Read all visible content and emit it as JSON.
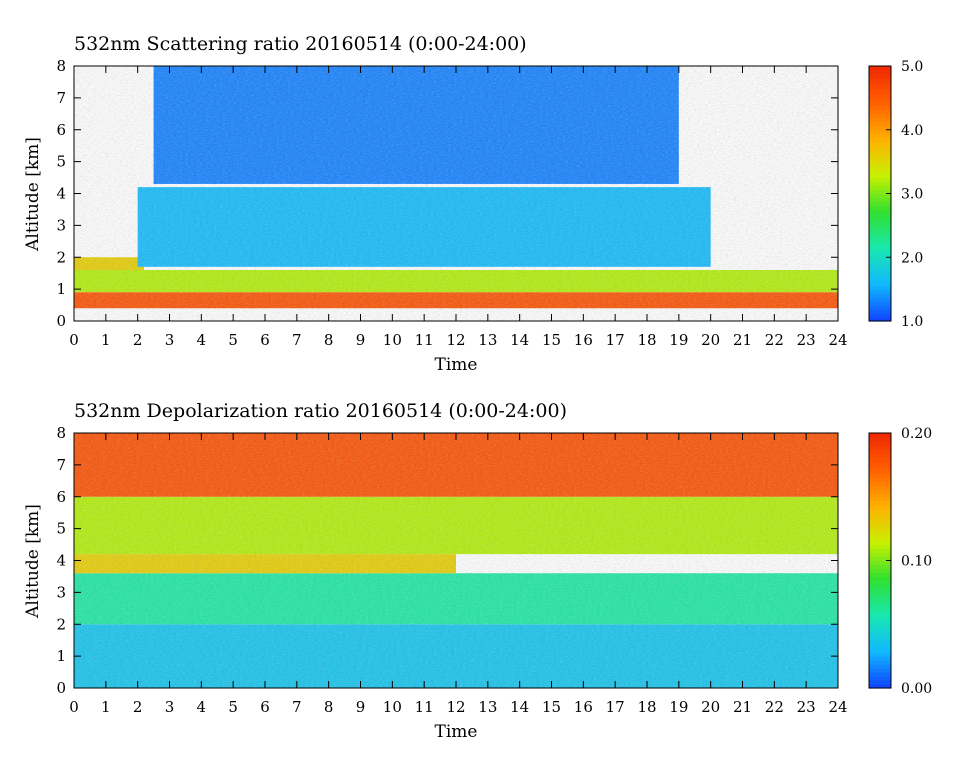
{
  "chart_data": [
    {
      "type": "heatmap",
      "title": "532nm Scattering ratio  20160514 (0:00-24:00)",
      "xlabel": "Time",
      "ylabel": "Altitude [km]",
      "xlim": [
        0,
        24
      ],
      "ylim": [
        0,
        8
      ],
      "x_ticks": [
        "0",
        "1",
        "2",
        "3",
        "4",
        "5",
        "6",
        "7",
        "8",
        "9",
        "10",
        "11",
        "12",
        "13",
        "14",
        "15",
        "16",
        "17",
        "18",
        "19",
        "20",
        "21",
        "22",
        "23",
        "24"
      ],
      "y_ticks": [
        "0",
        "1",
        "2",
        "3",
        "4",
        "5",
        "6",
        "7",
        "8"
      ],
      "colorbar": {
        "min": 1.0,
        "max": 5.0,
        "tick_labels": [
          "1.0",
          "2.0",
          "3.0",
          "4.0",
          "5.0"
        ]
      },
      "colormap": [
        "#1040ff",
        "#10b8ff",
        "#18e8b0",
        "#30e030",
        "#c8f000",
        "#ffb000",
        "#ff6000",
        "#f02800"
      ],
      "features": [
        {
          "x": [
            0,
            2.2
          ],
          "y": [
            1.5,
            2.0
          ],
          "value": 3.6
        },
        {
          "x": [
            0,
            24
          ],
          "y": [
            0.9,
            1.6
          ],
          "value": 3.2
        },
        {
          "x": [
            0,
            24
          ],
          "y": [
            0.4,
            0.9
          ],
          "value": 4.6
        },
        {
          "x": [
            2,
            20
          ],
          "y": [
            1.7,
            4.2
          ],
          "value": 1.6
        },
        {
          "x": [
            2.5,
            19
          ],
          "y": [
            4.3,
            8.0
          ],
          "value": 1.3
        }
      ]
    },
    {
      "type": "heatmap",
      "title": "532nm Depolarization ratio  20160514 (0:00-24:00)",
      "xlabel": "Time",
      "ylabel": "Altitude [km]",
      "xlim": [
        0,
        24
      ],
      "ylim": [
        0,
        8
      ],
      "x_ticks": [
        "0",
        "1",
        "2",
        "3",
        "4",
        "5",
        "6",
        "7",
        "8",
        "9",
        "10",
        "11",
        "12",
        "13",
        "14",
        "15",
        "16",
        "17",
        "18",
        "19",
        "20",
        "21",
        "22",
        "23",
        "24"
      ],
      "y_ticks": [
        "0",
        "1",
        "2",
        "3",
        "4",
        "5",
        "6",
        "7",
        "8"
      ],
      "colorbar": {
        "min": 0.0,
        "max": 0.2,
        "tick_labels": [
          "0.00",
          "0.10",
          "0.20"
        ]
      },
      "colormap": [
        "#1040ff",
        "#10b8ff",
        "#18e8b0",
        "#30e030",
        "#c8f000",
        "#ffb000",
        "#ff6000",
        "#f02800"
      ],
      "features": [
        {
          "x": [
            0,
            24
          ],
          "y": [
            0.0,
            2.0
          ],
          "value": 0.035
        },
        {
          "x": [
            0,
            24
          ],
          "y": [
            2.0,
            3.6
          ],
          "value": 0.06
        },
        {
          "x": [
            0,
            12
          ],
          "y": [
            3.6,
            4.2
          ],
          "value": 0.13
        },
        {
          "x": [
            0,
            24
          ],
          "y": [
            4.2,
            6.0
          ],
          "value": 0.11
        },
        {
          "x": [
            0,
            24
          ],
          "y": [
            6.0,
            8.0
          ],
          "value": 0.18
        }
      ]
    }
  ]
}
